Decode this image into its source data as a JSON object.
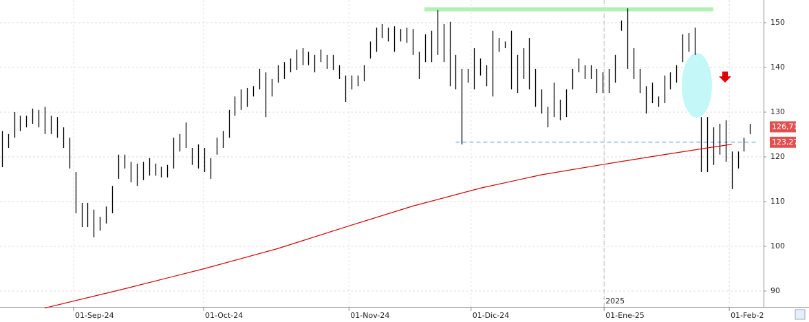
{
  "chart_data": {
    "type": "hilo",
    "bar_color": "#000000",
    "high": [
      125.8,
      125.1,
      130,
      129.2,
      129.2,
      130.8,
      130.5,
      131.2,
      129.2,
      128.9,
      126.6,
      124.3,
      116.6,
      109.7,
      109.7,
      108.2,
      106.6,
      108.9,
      113.5,
      120.5,
      120.5,
      118.9,
      118.5,
      118.9,
      119.7,
      118.5,
      117.8,
      118.2,
      124.3,
      125.1,
      127.7,
      122,
      122.8,
      122,
      119.7,
      124.3,
      125.8,
      130.5,
      133.5,
      135.1,
      135.4,
      135.8,
      139.7,
      138.9,
      137.4,
      140.5,
      141.2,
      142,
      144,
      144.3,
      143.5,
      142.8,
      144,
      142.8,
      142.8,
      140.5,
      138.2,
      138.2,
      138.2,
      140.5,
      145.8,
      148.9,
      149.7,
      148.9,
      149.2,
      148.6,
      148.9,
      148.6,
      143.5,
      147.4,
      148.2,
      152.8,
      149.7,
      150.2,
      142.8,
      139.7,
      139.7,
      144.3,
      142,
      140.5,
      148.2,
      146.6,
      145.8,
      148.2,
      142.8,
      144.3,
      146.6,
      139.7,
      135.1,
      131.2,
      136.6,
      132.8,
      135.1,
      139.7,
      142,
      140.5,
      140.5,
      139.7,
      138.9,
      139.7,
      142.8,
      150.5,
      153.2,
      144.3,
      139.7,
      135.8,
      136.6,
      133.5,
      138.2,
      138.9,
      140.5,
      147.4,
      147.7,
      148.9,
      128.9,
      128.9,
      126.6,
      127.4,
      128.2,
      121.2,
      121.2,
      124.3,
      127.4
    ],
    "low": [
      117.7,
      122,
      124.3,
      125.8,
      126.6,
      127.4,
      126.6,
      125.1,
      125.1,
      124.3,
      122,
      117.4,
      107.4,
      104.3,
      104.3,
      102,
      103.5,
      105.1,
      107.4,
      115.1,
      117.4,
      114.3,
      113.5,
      114.8,
      115.8,
      115.8,
      115.4,
      115.4,
      117.4,
      121.2,
      122,
      118.2,
      117.4,
      116.6,
      115.1,
      120.5,
      122,
      124.3,
      129.2,
      130.5,
      131.2,
      133.5,
      135.1,
      128.9,
      133.5,
      136.6,
      137.4,
      138.9,
      139.4,
      140.5,
      140.5,
      138.9,
      141.2,
      139.7,
      139.4,
      137.4,
      132.3,
      135.1,
      135.8,
      136.9,
      142,
      143.5,
      146.6,
      145.8,
      143.5,
      145.8,
      145.5,
      142.8,
      137.4,
      141.2,
      141.2,
      142.8,
      141.2,
      135.8,
      135.1,
      122.8,
      136.6,
      135.1,
      138.2,
      135.8,
      133.5,
      143.5,
      144.3,
      135.1,
      134.3,
      137.4,
      135.1,
      131.2,
      129.7,
      126.6,
      128.9,
      128.2,
      128.9,
      135.1,
      138.9,
      137.4,
      137.4,
      134.3,
      134.3,
      134.3,
      136.6,
      148.2,
      139.7,
      137.4,
      134.3,
      129.7,
      132,
      131.2,
      132,
      135.1,
      136.6,
      141.2,
      143.5,
      142.8,
      116.6,
      116.6,
      118.2,
      120.5,
      118.9,
      112.8,
      117.4,
      121.2,
      125.1
    ],
    "moving_average": {
      "color": "#d40000",
      "x": [
        7,
        20,
        33,
        45,
        56,
        67,
        78,
        88,
        98,
        108,
        115,
        119
      ],
      "values": [
        86.2,
        90.5,
        95,
        99.5,
        104.3,
        109,
        113,
        116,
        118.3,
        120.5,
        122,
        122.8
      ]
    },
    "xlim": [
      -0.3,
      124.2
    ],
    "xticks": [
      {
        "value": 11.7,
        "label": "01-Sep-24"
      },
      {
        "value": 32.9,
        "label": "01-Oct-24"
      },
      {
        "value": 56.6,
        "label": "01-Nov-24"
      },
      {
        "value": 76.5,
        "label": "01-Dic-24"
      },
      {
        "value": 98.2,
        "label": "01-Ene-25"
      },
      {
        "value": 118.6,
        "label": "01-Feb-2"
      }
    ],
    "year_marker": {
      "value": 98.2,
      "label": "2025"
    },
    "ylim": [
      86.46,
      155.08
    ],
    "yticks": [
      90,
      100,
      110,
      120,
      130,
      140,
      150
    ],
    "grid": true,
    "hlines": [
      {
        "value": 153,
        "from": 68.9,
        "to": 116,
        "color": "#b3f0b3",
        "style": "solid"
      },
      {
        "value": 123.27,
        "from": 74,
        "to": 123.2,
        "color": "#a9c8ec",
        "style": "dashed"
      }
    ],
    "price_tags": [
      {
        "value": 126.71,
        "label": "126,71"
      },
      {
        "value": 123.27,
        "label": "123,27"
      }
    ]
  }
}
